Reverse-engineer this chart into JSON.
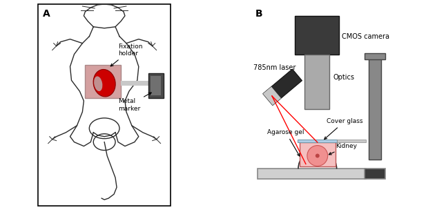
{
  "panel_A_label": "A",
  "panel_B_label": "B",
  "fixation_holder_label": "Fixation\nholder",
  "metal_marker_label": "Metal\nmarker",
  "cmos_camera_label": "CMOS camera",
  "optics_label": "Optics",
  "laser_label": "785nm laser",
  "agarose_gel_label": "Agarose gel",
  "cover_glass_label": "Cover glass",
  "kidney_label": "Kidney",
  "bg_color": "#ffffff",
  "mouse_color": "#2a2a2a",
  "kidney_red": "#cc0000",
  "kidney_dark_red": "#8b0000",
  "fix_holder_pink": "#c8909090",
  "fix_holder_border": "#999999",
  "camera_dark": "#3a3a3a",
  "optics_gray": "#aaaaaa",
  "optics_dark": "#888888",
  "laser_dark": "#2a2a2a",
  "laser_tip_gray": "#cccccc",
  "laser_beam": "#ff0000",
  "agarose_pink": "#f5c0c0",
  "agarose_dark_pink": "#e08080",
  "agarose_border": "#bb5555",
  "kidney_b_pink": "#f09090",
  "kidney_b_border": "#cc5555",
  "cover_glass_blue": "#b0d0e8",
  "stage_light": "#d0d0d0",
  "stage_dark": "#555555",
  "stand_gray": "#888888",
  "rod_gray": "#c8c8c8",
  "metal_dark": "#4a4a4a",
  "metal_inner": "#707070"
}
